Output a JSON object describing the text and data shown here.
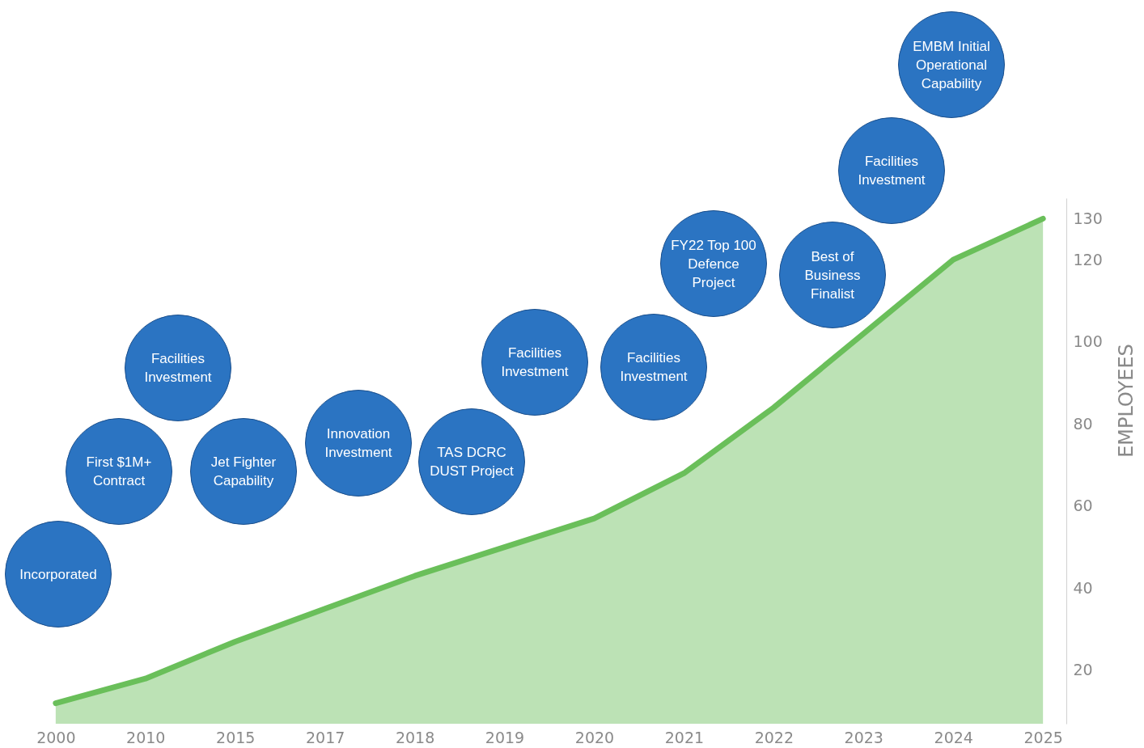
{
  "chart_data": {
    "type": "area",
    "ylabel": "EMPLOYEES",
    "categories": [
      "2000",
      "2010",
      "2015",
      "2017",
      "2018",
      "2019",
      "2020",
      "2021",
      "2022",
      "2023",
      "2024",
      "2025"
    ],
    "values": [
      12,
      18,
      27,
      35,
      43,
      50,
      57,
      68,
      84,
      102,
      120,
      130
    ],
    "color": "#6abf5a",
    "ylim": [
      7,
      135
    ],
    "yticks": [
      20,
      40,
      60,
      80,
      100,
      120,
      130
    ],
    "annotations": [
      "Incorporated",
      "First $1M+ Contract",
      "Facilities Investment",
      "Jet Fighter Capability",
      "Innovation Investment",
      "TAS DCRC DUST Project",
      "Facilities Investment",
      "Facilities Investment",
      "FY22 Top 100 Defence Project",
      "Best of Business Finalist",
      "Facilities Investment",
      "EMBM Initial Operational Capability"
    ]
  }
}
